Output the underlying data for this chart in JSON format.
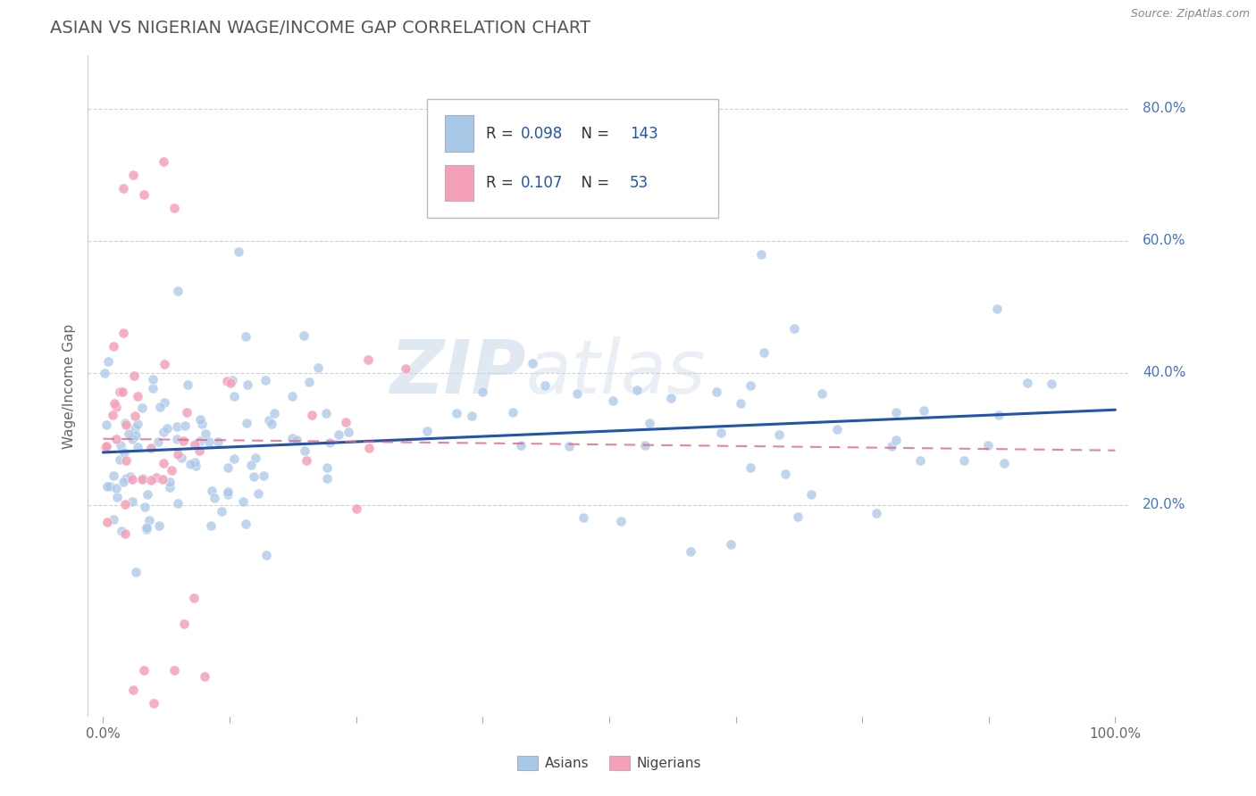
{
  "title": "ASIAN VS NIGERIAN WAGE/INCOME GAP CORRELATION CHART",
  "source": "Source: ZipAtlas.com",
  "ylabel": "Wage/Income Gap",
  "y_ticks_labels": [
    "20.0%",
    "40.0%",
    "60.0%",
    "80.0%"
  ],
  "y_tick_vals": [
    0.2,
    0.4,
    0.6,
    0.8
  ],
  "x_tick_vals": [
    0.0,
    0.125,
    0.25,
    0.375,
    0.5,
    0.625,
    0.75,
    0.875,
    1.0
  ],
  "legend_asian_R": "0.098",
  "legend_asian_N": "143",
  "legend_nigerian_R": "0.107",
  "legend_nigerian_N": "53",
  "asian_color": "#a8c8e8",
  "nigerian_color": "#f4a0b8",
  "asian_line_color": "#2255aa",
  "nigerian_line_color": "#dd6688",
  "watermark_zip": "ZIP",
  "watermark_atlas": "atlas",
  "bg_color": "#ffffff",
  "grid_color": "#cccccc",
  "asian_seed": 12345,
  "nigerian_seed": 54321,
  "xlim": [
    -0.015,
    1.015
  ],
  "ylim": [
    -0.12,
    0.88
  ]
}
